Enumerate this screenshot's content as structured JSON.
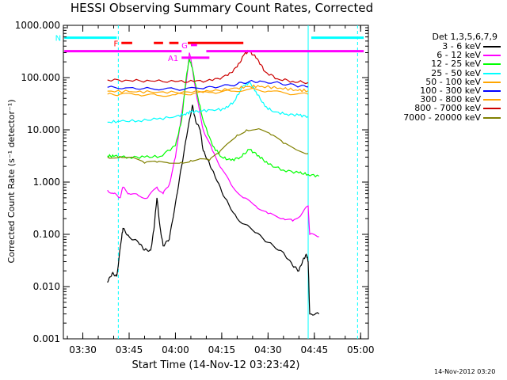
{
  "chart_data": {
    "type": "line",
    "title": "HESSI Observing Summary Count Rates, Corrected",
    "xlabel": "Start Time (14-Nov-12 03:23:42)",
    "ylabel": "Corrected Count Rate (s⁻¹ detector⁻¹)",
    "y_scale": "log",
    "ylim": [
      0.001,
      1000
    ],
    "xlim": [
      "03:23:42",
      "05:02:30"
    ],
    "x_ticks": [
      "03:30",
      "03:45",
      "04:00",
      "04:15",
      "04:30",
      "04:45",
      "05:00"
    ],
    "y_ticks": [
      "1000.000",
      "100.000",
      "10.000",
      "1.000",
      "0.100",
      "0.010",
      "0.001"
    ],
    "grid": false,
    "legend_title": "Det 1,3,5,6,7,9",
    "legend_position": "right",
    "series": [
      {
        "name": "3 - 6 keV",
        "color": "#000000",
        "points": [
          [
            "03:38:00",
            0.012
          ],
          [
            "03:39:30",
            0.018
          ],
          [
            "03:41:00",
            0.016
          ],
          [
            "03:42:30",
            0.08
          ],
          [
            "03:43:00",
            0.13
          ],
          [
            "03:45:00",
            0.09
          ],
          [
            "03:48:00",
            0.07
          ],
          [
            "03:50:00",
            0.05
          ],
          [
            "03:52:00",
            0.05
          ],
          [
            "03:53:00",
            0.12
          ],
          [
            "03:54:00",
            0.5
          ],
          [
            "03:55:00",
            0.14
          ],
          [
            "03:56:00",
            0.06
          ],
          [
            "03:58:00",
            0.08
          ],
          [
            "04:00:00",
            0.4
          ],
          [
            "04:02:00",
            2.0
          ],
          [
            "04:04:00",
            10
          ],
          [
            "04:05:30",
            30
          ],
          [
            "04:06:30",
            15
          ],
          [
            "04:08:00",
            10
          ],
          [
            "04:09:00",
            4
          ],
          [
            "04:11:00",
            2.3
          ],
          [
            "04:13:00",
            1.2
          ],
          [
            "04:16:00",
            0.5
          ],
          [
            "04:20:00",
            0.2
          ],
          [
            "04:25:00",
            0.12
          ],
          [
            "04:30:00",
            0.07
          ],
          [
            "04:35:00",
            0.045
          ],
          [
            "04:38:00",
            0.025
          ],
          [
            "04:40:00",
            0.02
          ],
          [
            "04:41:30",
            0.035
          ],
          [
            "04:42:30",
            0.04
          ],
          [
            "04:43:00",
            0.03
          ],
          [
            "04:43:30",
            0.003
          ],
          [
            "04:46:30",
            0.003
          ]
        ]
      },
      {
        "name": "6 - 12 keV",
        "color": "#ff00ff",
        "points": [
          [
            "03:38:00",
            0.7
          ],
          [
            "03:40:00",
            0.6
          ],
          [
            "03:42:00",
            0.5
          ],
          [
            "03:43:00",
            0.8
          ],
          [
            "03:45:00",
            0.6
          ],
          [
            "03:48:00",
            0.55
          ],
          [
            "03:51:00",
            0.5
          ],
          [
            "03:54:00",
            0.8
          ],
          [
            "03:56:00",
            0.6
          ],
          [
            "03:58:00",
            0.9
          ],
          [
            "04:00:00",
            3
          ],
          [
            "04:02:00",
            20
          ],
          [
            "04:03:30",
            80
          ],
          [
            "04:04:30",
            300
          ],
          [
            "04:05:30",
            150
          ],
          [
            "04:07:00",
            40
          ],
          [
            "04:09:00",
            10
          ],
          [
            "04:12:00",
            4
          ],
          [
            "04:15:00",
            1.8
          ],
          [
            "04:18:00",
            0.9
          ],
          [
            "04:22:00",
            0.5
          ],
          [
            "04:26:00",
            0.35
          ],
          [
            "04:30:00",
            0.25
          ],
          [
            "04:35:00",
            0.2
          ],
          [
            "04:38:00",
            0.18
          ],
          [
            "04:41:00",
            0.25
          ],
          [
            "04:43:00",
            0.35
          ],
          [
            "04:43:30",
            0.1
          ],
          [
            "04:46:30",
            0.09
          ]
        ]
      },
      {
        "name": "12 - 25 keV",
        "color": "#00ff00",
        "points": [
          [
            "03:38:00",
            3.2
          ],
          [
            "03:40:00",
            3.1
          ],
          [
            "03:45:00",
            3.0
          ],
          [
            "03:50:00",
            3.0
          ],
          [
            "03:55:00",
            3.1
          ],
          [
            "04:00:00",
            5
          ],
          [
            "04:02:00",
            15
          ],
          [
            "04:03:30",
            100
          ],
          [
            "04:04:30",
            230
          ],
          [
            "04:05:30",
            150
          ],
          [
            "04:07:00",
            50
          ],
          [
            "04:09:00",
            15
          ],
          [
            "04:12:00",
            5
          ],
          [
            "04:15:00",
            3
          ],
          [
            "04:18:00",
            2.6
          ],
          [
            "04:21:00",
            3
          ],
          [
            "04:24:00",
            4.2
          ],
          [
            "04:27:00",
            3.2
          ],
          [
            "04:30:00",
            2.2
          ],
          [
            "04:35:00",
            1.7
          ],
          [
            "04:40:00",
            1.5
          ],
          [
            "04:43:00",
            1.4
          ],
          [
            "04:46:30",
            1.3
          ]
        ]
      },
      {
        "name": "25 - 50 keV",
        "color": "#00ffff",
        "points": [
          [
            "03:38:00",
            14
          ],
          [
            "03:42:00",
            14.5
          ],
          [
            "03:48:00",
            15
          ],
          [
            "03:54:00",
            16
          ],
          [
            "04:00:00",
            18
          ],
          [
            "04:03:00",
            20
          ],
          [
            "04:05:00",
            22
          ],
          [
            "04:08:00",
            23
          ],
          [
            "04:12:00",
            24
          ],
          [
            "04:16:00",
            25
          ],
          [
            "04:19:00",
            35
          ],
          [
            "04:22:00",
            70
          ],
          [
            "04:24:00",
            80
          ],
          [
            "04:26:00",
            55
          ],
          [
            "04:29:00",
            28
          ],
          [
            "04:32:00",
            22
          ],
          [
            "04:36:00",
            20
          ],
          [
            "04:40:00",
            19
          ],
          [
            "04:43:00",
            18
          ]
        ]
      },
      {
        "name": "50 - 100 keV",
        "color": "#ffa500",
        "points": [
          [
            "03:38:00",
            48
          ],
          [
            "03:42:00",
            48
          ],
          [
            "03:48:00",
            47
          ],
          [
            "03:54:00",
            46
          ],
          [
            "04:00:00",
            47
          ],
          [
            "04:06:00",
            50
          ],
          [
            "04:12:00",
            52
          ],
          [
            "04:18:00",
            55
          ],
          [
            "04:24:00",
            60
          ],
          [
            "04:30:00",
            55
          ],
          [
            "04:36:00",
            50
          ],
          [
            "04:43:00",
            48
          ]
        ]
      },
      {
        "name": "100 - 300 keV",
        "color": "#0000ff",
        "points": [
          [
            "03:38:00",
            65
          ],
          [
            "03:45:00",
            64
          ],
          [
            "03:52:00",
            62
          ],
          [
            "04:00:00",
            60
          ],
          [
            "04:08:00",
            62
          ],
          [
            "04:14:00",
            66
          ],
          [
            "04:20:00",
            75
          ],
          [
            "04:24:00",
            85
          ],
          [
            "04:28:00",
            85
          ],
          [
            "04:34:00",
            78
          ],
          [
            "04:39:00",
            70
          ],
          [
            "04:43:00",
            66
          ]
        ]
      },
      {
        "name": "300 - 800 keV",
        "color": "#ffa500",
        "points": [
          [
            "03:38:00",
            55
          ],
          [
            "03:45:00",
            54
          ],
          [
            "03:52:00",
            53
          ],
          [
            "04:00:00",
            52
          ],
          [
            "04:08:00",
            54
          ],
          [
            "04:14:00",
            57
          ],
          [
            "04:20:00",
            63
          ],
          [
            "04:24:00",
            68
          ],
          [
            "04:28:00",
            68
          ],
          [
            "04:34:00",
            63
          ],
          [
            "04:39:00",
            58
          ],
          [
            "04:43:00",
            56
          ]
        ]
      },
      {
        "name": "800 - 7000 keV",
        "color": "#cc0000",
        "points": [
          [
            "03:38:00",
            90
          ],
          [
            "03:45:00",
            88
          ],
          [
            "03:52:00",
            86
          ],
          [
            "04:00:00",
            84
          ],
          [
            "04:06:00",
            84
          ],
          [
            "04:12:00",
            88
          ],
          [
            "04:17:00",
            110
          ],
          [
            "04:20:00",
            160
          ],
          [
            "04:22:30",
            290
          ],
          [
            "04:24:00",
            320
          ],
          [
            "04:26:30",
            230
          ],
          [
            "04:29:00",
            130
          ],
          [
            "04:33:00",
            95
          ],
          [
            "04:38:00",
            85
          ],
          [
            "04:43:00",
            80
          ]
        ]
      },
      {
        "name": "7000 - 20000 keV",
        "color": "#808000",
        "points": [
          [
            "03:38:00",
            3.0
          ],
          [
            "03:42:00",
            3.1
          ],
          [
            "03:46:00",
            3.0
          ],
          [
            "03:50:00",
            2.3
          ],
          [
            "03:54:00",
            2.4
          ],
          [
            "03:58:00",
            2.3
          ],
          [
            "04:02:00",
            2.4
          ],
          [
            "04:05:00",
            2.6
          ],
          [
            "04:08:00",
            2.8
          ],
          [
            "04:11:00",
            2.6
          ],
          [
            "04:14:00",
            3.5
          ],
          [
            "04:17:00",
            5.5
          ],
          [
            "04:20:00",
            8
          ],
          [
            "04:23:00",
            10
          ],
          [
            "04:27:00",
            10.5
          ],
          [
            "04:31:00",
            8
          ],
          [
            "04:35:00",
            5.5
          ],
          [
            "04:39:00",
            4.2
          ],
          [
            "04:43:00",
            3.5
          ]
        ]
      }
    ],
    "flag_bars": [
      {
        "label": "N",
        "color": "#00ffff",
        "y": 580,
        "intervals": [
          [
            "03:24:00",
            "03:41:00"
          ],
          [
            "04:44:00",
            "05:01:00"
          ]
        ]
      },
      {
        "label": "F",
        "color": "#ff0000",
        "y": 460,
        "intervals": [
          [
            "03:42:30",
            "03:46:00"
          ],
          [
            "03:53:00",
            "03:56:00"
          ],
          [
            "03:58:00",
            "04:01:00"
          ],
          [
            "04:04:00",
            "04:22:00"
          ]
        ]
      },
      {
        "label": "",
        "color": "#ff00ff",
        "y": 320,
        "intervals": [
          [
            "03:24:00",
            "04:02:00"
          ],
          [
            "04:10:00",
            "05:01:00"
          ]
        ]
      },
      {
        "label": "A1",
        "color": "#ff00ff",
        "y": 240,
        "intervals": [
          [
            "04:02:00",
            "04:11:00"
          ]
        ]
      },
      {
        "label": "G",
        "color": "#ff00ff",
        "y": 420,
        "intervals": [
          [
            "04:05:00",
            "04:07:00"
          ]
        ]
      }
    ],
    "vertical_lines": [
      {
        "time": "03:41:30",
        "color": "#00ffff",
        "style": "dashed"
      },
      {
        "time": "04:43:00",
        "color": "#00ffff",
        "style": "solid"
      },
      {
        "time": "04:59:00",
        "color": "#00ffff",
        "style": "dashed"
      }
    ]
  },
  "footer": {
    "timestamp": "14-Nov-2012 03:20"
  }
}
